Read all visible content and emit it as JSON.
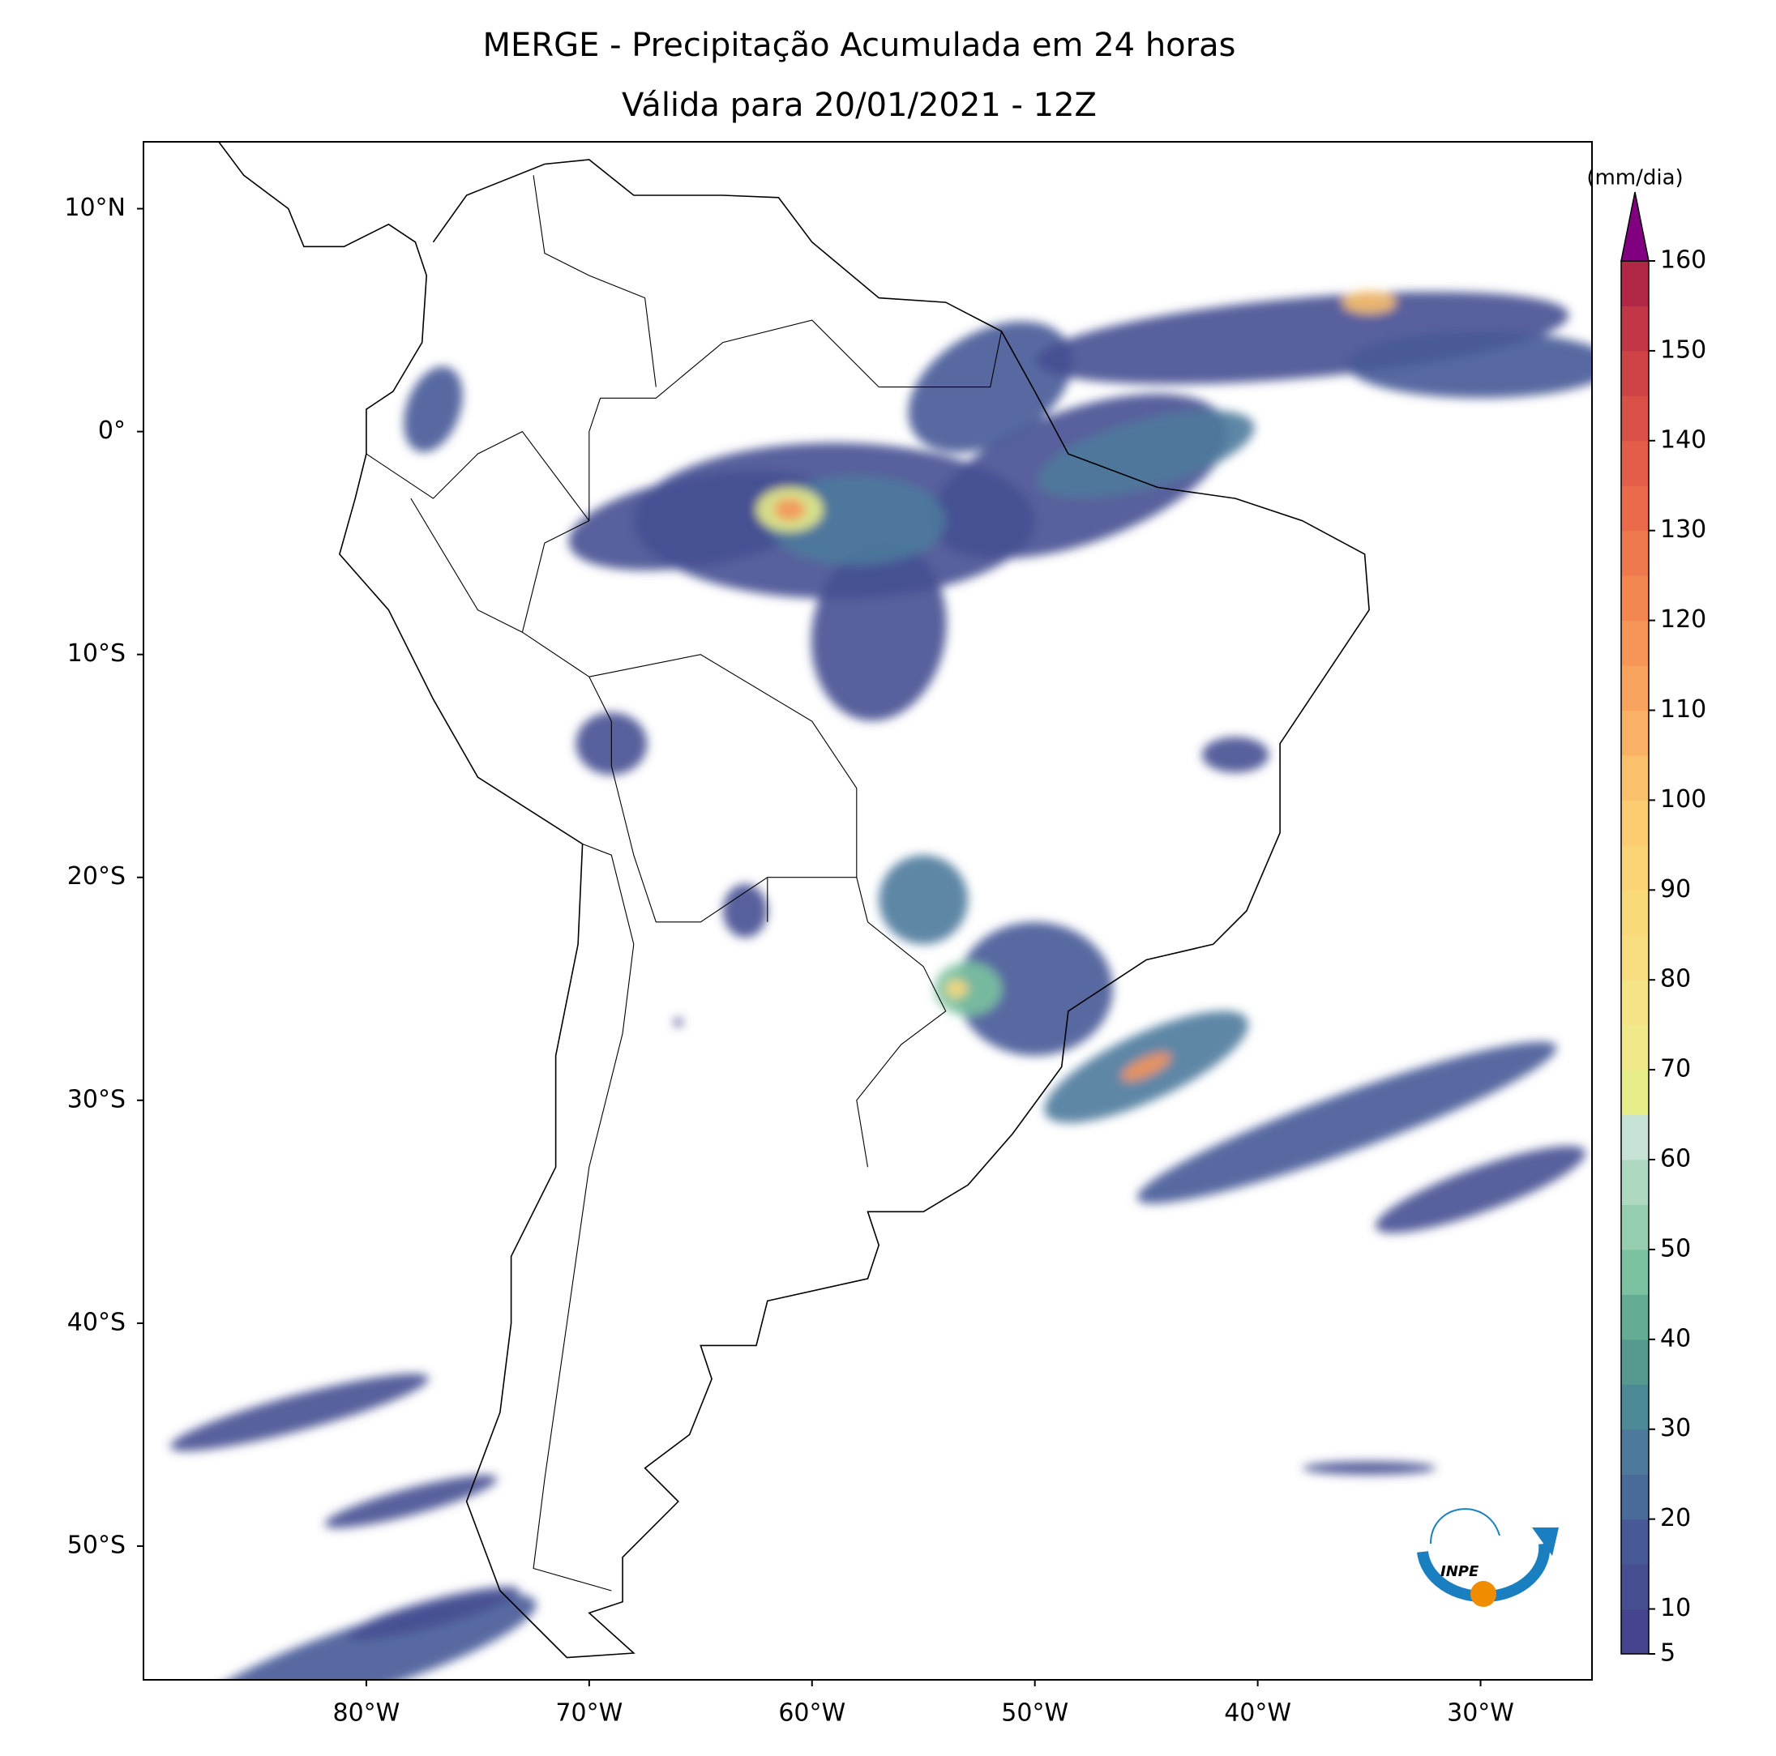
{
  "map": {
    "title": "MERGE - Precipitação Acumulada em 24 horas",
    "subtitle": "Válida para 20/01/2021 - 12Z",
    "xlim": [
      -90,
      -25
    ],
    "ylim": [
      -56,
      13
    ],
    "xticks": [
      {
        "value": -80,
        "label": "80°W"
      },
      {
        "value": -70,
        "label": "70°W"
      },
      {
        "value": -60,
        "label": "60°W"
      },
      {
        "value": -50,
        "label": "50°W"
      },
      {
        "value": -40,
        "label": "40°W"
      },
      {
        "value": -30,
        "label": "30°W"
      }
    ],
    "yticks": [
      {
        "value": 10,
        "label": "10°N"
      },
      {
        "value": 0,
        "label": "0°"
      },
      {
        "value": -10,
        "label": "10°S"
      },
      {
        "value": -20,
        "label": "20°S"
      },
      {
        "value": -30,
        "label": "30°S"
      },
      {
        "value": -40,
        "label": "40°S"
      },
      {
        "value": -50,
        "label": "50°S"
      }
    ],
    "colorbar": {
      "label": "(mm/dia)",
      "lim": [
        5,
        160
      ],
      "ticks": [
        5,
        10,
        20,
        30,
        40,
        50,
        60,
        70,
        80,
        90,
        100,
        110,
        120,
        130,
        140,
        150,
        160
      ],
      "colors": [
        "#45458f",
        "#464f92",
        "#475a97",
        "#4a6a9a",
        "#4d7a9c",
        "#4d8a98",
        "#55998f",
        "#64ad94",
        "#7bc2a0",
        "#95ceae",
        "#aed9c0",
        "#c6e3d5",
        "#e7ed88",
        "#f1e88a",
        "#f5e486",
        "#f8de80",
        "#fad97b",
        "#fbd477",
        "#fbcc72",
        "#fac06c",
        "#f9b265",
        "#f7a35e",
        "#f59558",
        "#f28752",
        "#ef794e",
        "#ea6a4b",
        "#e35d49",
        "#da5047",
        "#cf4346",
        "#c23646",
        "#b12847"
      ],
      "extend_color": "#800080"
    },
    "logo_text": "INPE"
  }
}
